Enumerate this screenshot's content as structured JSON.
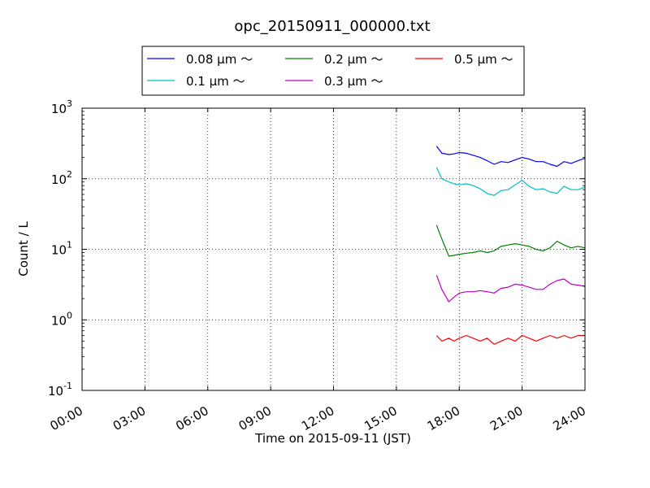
{
  "chart_data": {
    "type": "line",
    "title": "opc_20150911_000000.txt",
    "xlabel": "Time on 2015-09-11 (JST)",
    "ylabel": "Count / L",
    "y_scale": "log",
    "ylim": [
      0.1,
      1000
    ],
    "xlim": [
      "00:00",
      "24:00"
    ],
    "grid": true,
    "legend_placement": "top-center",
    "x_ticks": [
      "00:00",
      "03:00",
      "06:00",
      "09:00",
      "12:00",
      "15:00",
      "18:00",
      "21:00",
      "24:00"
    ],
    "y_ticks": [
      {
        "base": "10",
        "exp": "-1"
      },
      {
        "base": "10",
        "exp": "0"
      },
      {
        "base": "10",
        "exp": "1"
      },
      {
        "base": "10",
        "exp": "2"
      },
      {
        "base": "10",
        "exp": "3"
      }
    ],
    "x": [
      "16:55",
      "17:10",
      "17:30",
      "17:45",
      "18:00",
      "18:20",
      "18:40",
      "19:00",
      "19:20",
      "19:40",
      "20:00",
      "20:20",
      "20:40",
      "21:00",
      "21:20",
      "21:40",
      "22:00",
      "22:20",
      "22:40",
      "23:00",
      "23:20",
      "23:40",
      "24:00"
    ],
    "series": [
      {
        "name": "0.08 µm ～",
        "color": "#0000ff",
        "values": [
          290,
          230,
          220,
          225,
          235,
          230,
          215,
          200,
          180,
          160,
          175,
          170,
          185,
          200,
          190,
          175,
          175,
          160,
          150,
          175,
          165,
          180,
          195
        ]
      },
      {
        "name": "0.1 µm ～",
        "color": "#00bfbf",
        "values": [
          145,
          100,
          90,
          85,
          82,
          85,
          80,
          72,
          62,
          58,
          68,
          70,
          82,
          95,
          78,
          70,
          72,
          65,
          62,
          78,
          70,
          70,
          76
        ]
      },
      {
        "name": "0.2 µm ～",
        "color": "#008000",
        "values": [
          22,
          14,
          8,
          8.2,
          8.5,
          8.8,
          9,
          9.5,
          9,
          9.5,
          11,
          11.5,
          12,
          11.5,
          11,
          10,
          9.5,
          10.5,
          13,
          11.5,
          10.5,
          11,
          10.5
        ]
      },
      {
        "name": "0.3 µm ～",
        "color": "#bf00bf",
        "values": [
          4.3,
          2.7,
          1.8,
          2.1,
          2.4,
          2.5,
          2.5,
          2.6,
          2.5,
          2.4,
          2.8,
          2.9,
          3.2,
          3.1,
          2.9,
          2.7,
          2.7,
          3.2,
          3.6,
          3.8,
          3.2,
          3.1,
          3.0
        ]
      },
      {
        "name": "0.5 µm ～",
        "color": "#ff0000",
        "values": [
          0.6,
          0.5,
          0.55,
          0.5,
          0.55,
          0.6,
          0.55,
          0.5,
          0.55,
          0.45,
          0.5,
          0.55,
          0.5,
          0.6,
          0.55,
          0.5,
          0.55,
          0.6,
          0.55,
          0.6,
          0.55,
          0.6,
          0.6
        ]
      }
    ]
  }
}
